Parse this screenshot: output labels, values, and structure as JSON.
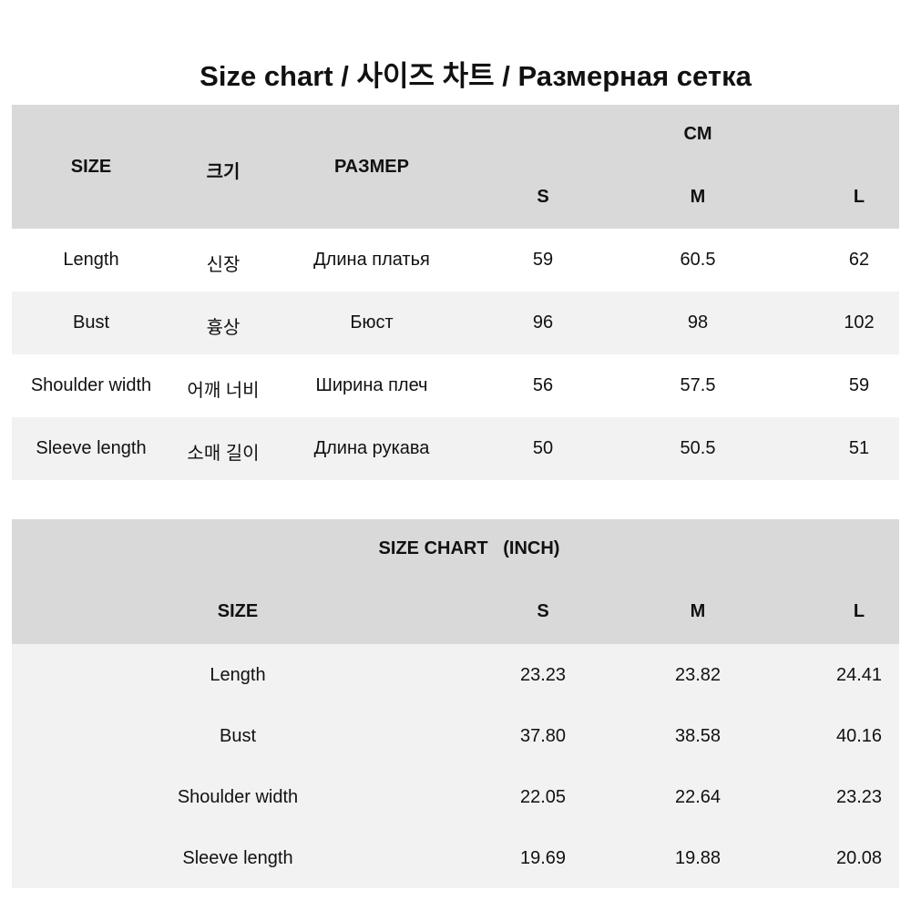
{
  "title": "Size chart / 사이즈 차트 / Размерная сетка",
  "cm_table": {
    "headers": [
      "SIZE",
      "크기",
      "РАЗМЕР"
    ],
    "unit": "CM",
    "sizes": [
      "S",
      "M",
      "L"
    ],
    "rows": [
      {
        "en": "Length",
        "ko": "신장",
        "ru": "Длина платья",
        "values": [
          "59",
          "60.5",
          "62"
        ]
      },
      {
        "en": "Bust",
        "ko": "흉상",
        "ru": "Бюст",
        "values": [
          "96",
          "98",
          "102"
        ]
      },
      {
        "en": "Shoulder width",
        "ko": "어깨 너비",
        "ru": "Ширина плеч",
        "values": [
          "56",
          "57.5",
          "59"
        ]
      },
      {
        "en": "Sleeve length",
        "ko": "소매 길이",
        "ru": "Длина рукава",
        "values": [
          "50",
          "50.5",
          "51"
        ]
      }
    ]
  },
  "inch_table": {
    "title": "SIZE CHART   (INCH)",
    "size_header": "SIZE",
    "sizes": [
      "S",
      "M",
      "L"
    ],
    "rows": [
      {
        "en": "Length",
        "values": [
          "23.23",
          "23.82",
          "24.41"
        ]
      },
      {
        "en": "Bust",
        "values": [
          "37.80",
          "38.58",
          "40.16"
        ]
      },
      {
        "en": "Shoulder width",
        "values": [
          "22.05",
          "22.64",
          "23.23"
        ]
      },
      {
        "en": "Sleeve length",
        "values": [
          "19.69",
          "19.88",
          "20.08"
        ]
      }
    ]
  },
  "colors": {
    "header_bg": "#d9d9d9",
    "stripe_bg": "#f2f2f2",
    "row_bg": "#ffffff"
  }
}
